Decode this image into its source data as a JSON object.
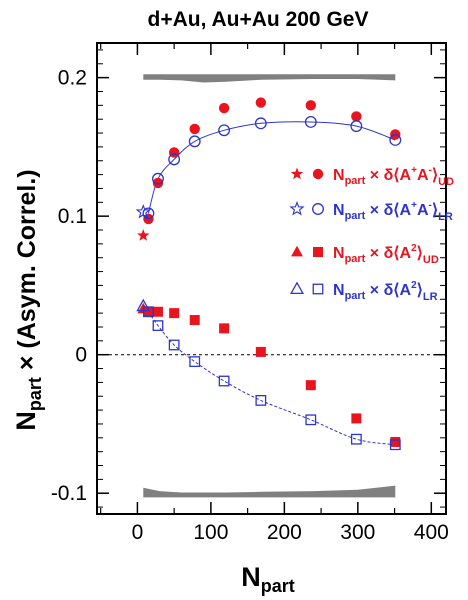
{
  "chart_data": {
    "type": "scatter",
    "title": "d+Au, Au+Au 200 GeV",
    "xlabel": {
      "main": "N",
      "sub": "part"
    },
    "ylabel": {
      "main": "N",
      "sub": "part",
      "rest": " × (Asym. Correl.)"
    },
    "xlim": [
      -55,
      420
    ],
    "ylim": [
      -0.115,
      0.225
    ],
    "xticks": [
      0,
      100,
      200,
      300,
      400
    ],
    "xtick_labels": [
      "0",
      "100",
      "200",
      "300",
      "400"
    ],
    "yticks": [
      -0.1,
      0,
      0.1,
      0.2
    ],
    "ytick_labels": [
      "-0.1",
      "0",
      "0.1",
      "0.2"
    ],
    "zero_line": true,
    "colors": {
      "red": "#e8141e",
      "blue": "#2c35cc",
      "band": "#808080"
    },
    "series": [
      {
        "label": "Npart × δ⟨A+A-⟩UD",
        "color": "#e8141e",
        "points": [
          {
            "x": 8,
            "y": 0.086,
            "marker": "star-filled"
          },
          {
            "x": 15,
            "y": 0.098,
            "marker": "circle-filled"
          },
          {
            "x": 28,
            "y": 0.124,
            "marker": "circle-filled"
          },
          {
            "x": 50,
            "y": 0.146,
            "marker": "circle-filled"
          },
          {
            "x": 78,
            "y": 0.163,
            "marker": "circle-filled"
          },
          {
            "x": 118,
            "y": 0.178,
            "marker": "circle-filled"
          },
          {
            "x": 168,
            "y": 0.182,
            "marker": "circle-filled"
          },
          {
            "x": 236,
            "y": 0.18,
            "marker": "circle-filled"
          },
          {
            "x": 298,
            "y": 0.172,
            "marker": "circle-filled"
          },
          {
            "x": 351,
            "y": 0.159,
            "marker": "circle-filled"
          }
        ]
      },
      {
        "label": "Npart × δ⟨A+A-⟩LR",
        "color": "#2c35cc",
        "points": [
          {
            "x": 8,
            "y": 0.103,
            "marker": "star-open"
          },
          {
            "x": 15,
            "y": 0.102,
            "marker": "circle-open"
          },
          {
            "x": 28,
            "y": 0.127,
            "marker": "circle-open"
          },
          {
            "x": 50,
            "y": 0.141,
            "marker": "circle-open"
          },
          {
            "x": 78,
            "y": 0.154,
            "marker": "circle-open"
          },
          {
            "x": 118,
            "y": 0.162,
            "marker": "circle-open"
          },
          {
            "x": 168,
            "y": 0.167,
            "marker": "circle-open"
          },
          {
            "x": 236,
            "y": 0.168,
            "marker": "circle-open"
          },
          {
            "x": 298,
            "y": 0.165,
            "marker": "circle-open"
          },
          {
            "x": 351,
            "y": 0.155,
            "marker": "circle-open"
          }
        ],
        "fit_line": "solid"
      },
      {
        "label": "Npart × δ⟨A²UD⟩",
        "color": "#e8141e",
        "points": [
          {
            "x": 8,
            "y": 0.033,
            "marker": "triangle-filled"
          },
          {
            "x": 15,
            "y": 0.031,
            "marker": "square-filled"
          },
          {
            "x": 28,
            "y": 0.031,
            "marker": "square-filled"
          },
          {
            "x": 50,
            "y": 0.03,
            "marker": "square-filled"
          },
          {
            "x": 78,
            "y": 0.025,
            "marker": "square-filled"
          },
          {
            "x": 118,
            "y": 0.019,
            "marker": "square-filled"
          },
          {
            "x": 168,
            "y": 0.002,
            "marker": "square-filled"
          },
          {
            "x": 236,
            "y": -0.022,
            "marker": "square-filled"
          },
          {
            "x": 298,
            "y": -0.046,
            "marker": "square-filled"
          },
          {
            "x": 351,
            "y": -0.063,
            "marker": "square-filled"
          }
        ]
      },
      {
        "label": "Npart × δ⟨A²LR⟩",
        "color": "#2c35cc",
        "points": [
          {
            "x": 8,
            "y": 0.035,
            "marker": "triangle-open"
          },
          {
            "x": 15,
            "y": 0.031,
            "marker": "square-open"
          },
          {
            "x": 28,
            "y": 0.021,
            "marker": "square-open"
          },
          {
            "x": 50,
            "y": 0.007,
            "marker": "square-open"
          },
          {
            "x": 78,
            "y": -0.005,
            "marker": "square-open"
          },
          {
            "x": 118,
            "y": -0.019,
            "marker": "square-open"
          },
          {
            "x": 168,
            "y": -0.033,
            "marker": "square-open"
          },
          {
            "x": 236,
            "y": -0.047,
            "marker": "square-open"
          },
          {
            "x": 298,
            "y": -0.061,
            "marker": "square-open"
          },
          {
            "x": 351,
            "y": -0.065,
            "marker": "square-open"
          }
        ],
        "fit_line": "dashed"
      }
    ],
    "systematic_bands": [
      {
        "x": [
          8,
          30,
          60,
          90,
          120,
          170,
          240,
          300,
          351
        ],
        "upper": [
          0.2025,
          0.2025,
          0.2025,
          0.2025,
          0.2025,
          0.2025,
          0.2025,
          0.2025,
          0.2025
        ],
        "lower": [
          0.1985,
          0.1985,
          0.198,
          0.1965,
          0.197,
          0.1985,
          0.199,
          0.199,
          0.198
        ]
      },
      {
        "x": [
          8,
          30,
          60,
          90,
          120,
          170,
          240,
          300,
          351
        ],
        "upper": [
          -0.096,
          -0.0985,
          -0.0995,
          -0.0995,
          -0.0995,
          -0.099,
          -0.0985,
          -0.0975,
          -0.0945
        ],
        "lower": [
          -0.103,
          -0.103,
          -0.103,
          -0.103,
          -0.103,
          -0.103,
          -0.103,
          -0.103,
          -0.103
        ]
      }
    ],
    "legend": {
      "placement": "right",
      "entries": [
        {
          "markers": [
            "star-filled",
            "circle-filled"
          ],
          "color": "#e8141e",
          "main": "N",
          "sub": "part",
          "times": " × δ",
          "open": "⟨",
          "term": "A",
          "sup1": "+",
          "term2": "A",
          "sup2": "-",
          "close": "⟩",
          "sub2": "UD"
        },
        {
          "markers": [
            "star-open",
            "circle-open"
          ],
          "color": "#2c35cc",
          "main": "N",
          "sub": "part",
          "times": " × δ",
          "open": "⟨",
          "term": "A",
          "sup1": "+",
          "term2": "A",
          "sup2": "-",
          "close": "⟩",
          "sub2": "LR"
        },
        {
          "markers": [
            "triangle-filled",
            "square-filled"
          ],
          "color": "#e8141e",
          "main": "N",
          "sub": "part",
          "times": " × δ",
          "open": "⟨",
          "term": "A",
          "sup1": "2",
          "term2": "",
          "sup2": "",
          "close": "⟩",
          "sub2": "UD"
        },
        {
          "markers": [
            "triangle-open",
            "square-open"
          ],
          "color": "#2c35cc",
          "main": "N",
          "sub": "part",
          "times": " × δ",
          "open": "⟨",
          "term": "A",
          "sup1": "2",
          "term2": "",
          "sup2": "",
          "close": "⟩",
          "sub2": "LR"
        }
      ]
    }
  }
}
